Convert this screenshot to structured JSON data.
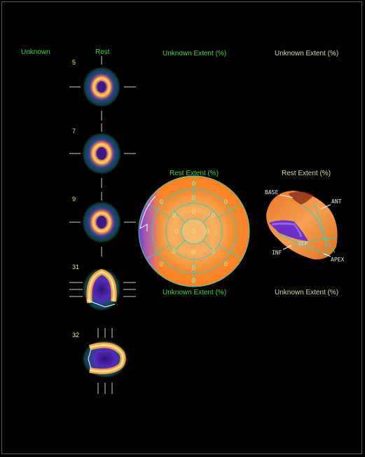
{
  "header": {
    "col1": "Unknown",
    "col2": "Rest",
    "col3": "Unknown Extent (%)",
    "col4": "Unknown Extent (%)"
  },
  "slices": [
    {
      "label": "5"
    },
    {
      "label": "7"
    },
    {
      "label": "9"
    },
    {
      "label": "31"
    },
    {
      "label": "32"
    }
  ],
  "bullseye": {
    "title": "Rest Extent (%)",
    "bottom_label": "Unknown Extent (%)",
    "segment_values": [
      "0",
      "0",
      "0",
      "0",
      "0",
      "0",
      "0",
      "0",
      "0",
      "0",
      "0",
      "0",
      "0",
      "0",
      "0",
      "0",
      "0"
    ]
  },
  "model3d": {
    "title": "Rest Extent (%)",
    "bottom_label": "Unknown Extent (%)",
    "labels": {
      "base": "BASE",
      "ant": "ANT",
      "inf": "INF",
      "sep": "SEP",
      "apex": "APEX"
    }
  },
  "colors": {
    "label_green": "#3fd43f",
    "label_khaki": "#d7d7a8",
    "grid": "#2fd0c0",
    "perfusion_orange": "#f59a3c",
    "defect_purple": "#7b3fd0"
  }
}
